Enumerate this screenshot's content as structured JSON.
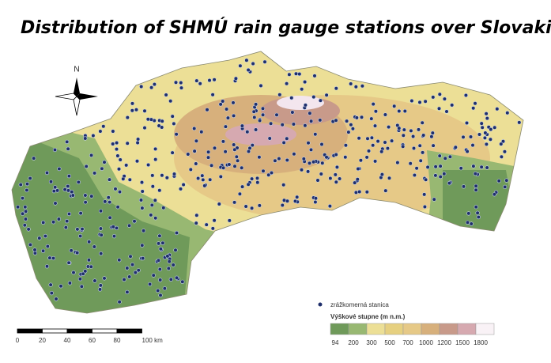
{
  "title": "Distribution of SHMÚ rain gauge stations over Slovakia",
  "compass": {
    "north": "N"
  },
  "legend": {
    "station_label": "zrážkomerná stanica",
    "elevation_title": "Výškové stupne (m n.m.)",
    "elevation_labels": [
      "94",
      "200",
      "300",
      "500",
      "700",
      "1000",
      "1200",
      "1500",
      "1800"
    ]
  },
  "scale_bar": {
    "labels": [
      "0",
      "20",
      "40",
      "60",
      "80",
      "100 km"
    ]
  }
}
